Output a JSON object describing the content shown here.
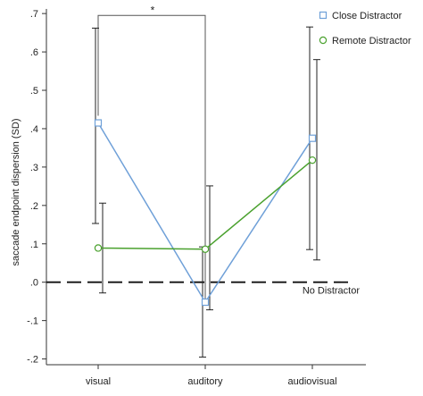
{
  "chart_data": {
    "type": "line",
    "ylabel": "saccade endpoint dispersion (SD)",
    "xlabel": "",
    "categories": [
      "visual",
      "auditory",
      "audiovisual"
    ],
    "ylim": [
      -0.22,
      0.72
    ],
    "y_ticks": [
      ".7",
      ".6",
      ".5",
      ".4",
      ".3",
      ".2",
      ".1",
      ".0",
      "-.1",
      "-.2"
    ],
    "y_tick_values": [
      0.7,
      0.6,
      0.5,
      0.4,
      0.3,
      0.2,
      0.1,
      0.0,
      -0.1,
      -0.2
    ],
    "grid": false,
    "legend_position": "top-right",
    "series": [
      {
        "name": "Close Distractor",
        "color": "#6fa0d8",
        "marker": "square",
        "values": [
          0.415,
          -0.052,
          0.375
        ],
        "err_low": [
          0.153,
          -0.195,
          0.085
        ],
        "err_high": [
          0.662,
          0.092,
          0.665
        ]
      },
      {
        "name": "Remote Distractor",
        "color": "#4aa12e",
        "marker": "circle",
        "values": [
          0.089,
          0.086,
          0.318
        ],
        "err_low": [
          -0.028,
          -0.072,
          0.058
        ],
        "err_high": [
          0.206,
          0.251,
          0.58
        ]
      }
    ],
    "reference_line": {
      "value": 0.0,
      "label": "No Distractor",
      "style": "dashed"
    },
    "annotations": [
      {
        "text": "*",
        "between": [
          "visual",
          "auditory"
        ],
        "y": 0.695
      }
    ]
  }
}
